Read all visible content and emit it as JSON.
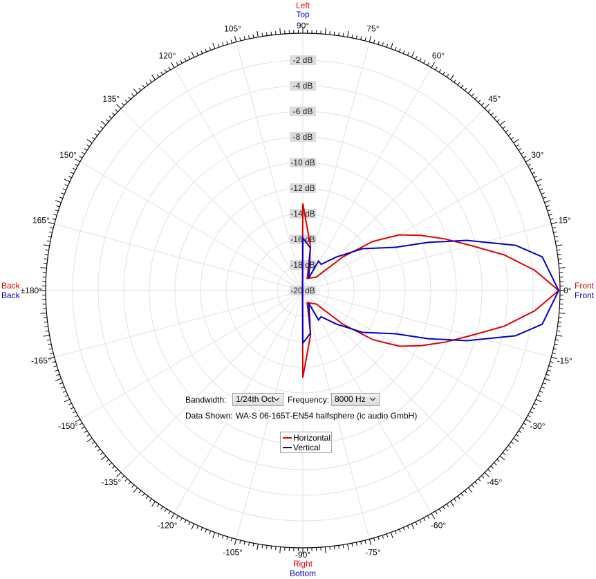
{
  "chart_data": {
    "type": "polar",
    "radial_axis": {
      "unit": "dB",
      "min": -20,
      "max": 0,
      "ring_labels": [
        "-2 dB",
        "-4 dB",
        "-6 dB",
        "-8 dB",
        "-10 dB",
        "-12 dB",
        "-14 dB",
        "-16 dB",
        "-18 dB",
        "-20 dB"
      ]
    },
    "angle_labels": [
      {
        "deg": 90,
        "text": "90°"
      },
      {
        "deg": 75,
        "text": "75°"
      },
      {
        "deg": 60,
        "text": "60°"
      },
      {
        "deg": 45,
        "text": "45°"
      },
      {
        "deg": 30,
        "text": "30°"
      },
      {
        "deg": 15,
        "text": "15°"
      },
      {
        "deg": 0,
        "text": "0°"
      },
      {
        "deg": -15,
        "text": "-15°"
      },
      {
        "deg": -30,
        "text": "-30°"
      },
      {
        "deg": -45,
        "text": "-45°"
      },
      {
        "deg": -60,
        "text": "-60°"
      },
      {
        "deg": -75,
        "text": "-75°"
      },
      {
        "deg": -90,
        "text": "-90°"
      },
      {
        "deg": -105,
        "text": "-105°"
      },
      {
        "deg": -120,
        "text": "-120°"
      },
      {
        "deg": -135,
        "text": "-135°"
      },
      {
        "deg": -150,
        "text": "-150°"
      },
      {
        "deg": -165,
        "text": "-165°"
      },
      {
        "deg": 180,
        "text": "±180°"
      },
      {
        "deg": 165,
        "text": "165°"
      },
      {
        "deg": 150,
        "text": "150°"
      },
      {
        "deg": 135,
        "text": "135°"
      },
      {
        "deg": 120,
        "text": "120°"
      },
      {
        "deg": 105,
        "text": "105°"
      }
    ],
    "direction_labels": {
      "top": [
        {
          "text": "Left",
          "color": "#e00000"
        },
        {
          "text": "Top",
          "color": "#0000d0"
        }
      ],
      "bottom": [
        {
          "text": "Right",
          "color": "#e00000"
        },
        {
          "text": "Bottom",
          "color": "#0000d0"
        }
      ],
      "right": [
        {
          "text": "Front",
          "color": "#e00000"
        },
        {
          "text": "Front",
          "color": "#0000d0"
        }
      ],
      "left": [
        {
          "text": "Back",
          "color": "#e00000"
        },
        {
          "text": "Back",
          "color": "#0000d0"
        }
      ]
    },
    "series": [
      {
        "name": "Horizontal",
        "color": "#e00000",
        "points": [
          {
            "deg": 0,
            "db": 0
          },
          {
            "deg": 5,
            "db": -1.8
          },
          {
            "deg": 10,
            "db": -4.0
          },
          {
            "deg": 15,
            "db": -6.4
          },
          {
            "deg": 20,
            "db": -8.2
          },
          {
            "deg": 25,
            "db": -9.8
          },
          {
            "deg": 30,
            "db": -11.3
          },
          {
            "deg": 35,
            "db": -13.3
          },
          {
            "deg": 40,
            "db": -15.9
          },
          {
            "deg": 45,
            "db": -18.5
          },
          {
            "deg": 70,
            "db": -19.0
          },
          {
            "deg": 80,
            "db": -16.5
          },
          {
            "deg": 90,
            "db": -13.2
          },
          {
            "deg": 100,
            "db": -19.8
          },
          {
            "deg": 180,
            "db": -20
          },
          {
            "deg": -100,
            "db": -19.8
          },
          {
            "deg": -90,
            "db": -13.2
          },
          {
            "deg": -80,
            "db": -16.5
          },
          {
            "deg": -70,
            "db": -19.0
          },
          {
            "deg": -45,
            "db": -18.5
          },
          {
            "deg": -40,
            "db": -15.9
          },
          {
            "deg": -35,
            "db": -13.3
          },
          {
            "deg": -30,
            "db": -11.3
          },
          {
            "deg": -25,
            "db": -9.8
          },
          {
            "deg": -20,
            "db": -8.2
          },
          {
            "deg": -15,
            "db": -6.4
          },
          {
            "deg": -10,
            "db": -4.0
          },
          {
            "deg": -5,
            "db": -1.8
          }
        ]
      },
      {
        "name": "Vertical",
        "color": "#0000d0",
        "points": [
          {
            "deg": 0,
            "db": 0
          },
          {
            "deg": 8,
            "db": -1.1
          },
          {
            "deg": 12,
            "db": -3.0
          },
          {
            "deg": 17,
            "db": -6.6
          },
          {
            "deg": 21,
            "db": -9.5
          },
          {
            "deg": 25,
            "db": -12.0
          },
          {
            "deg": 35,
            "db": -14.3
          },
          {
            "deg": 45,
            "db": -16.3
          },
          {
            "deg": 55,
            "db": -17.5
          },
          {
            "deg": 62,
            "db": -17.4
          },
          {
            "deg": 65,
            "db": -18.9
          },
          {
            "deg": 80,
            "db": -16.6
          },
          {
            "deg": 90,
            "db": -15.9
          },
          {
            "deg": 100,
            "db": -19.9
          },
          {
            "deg": 180,
            "db": -20
          },
          {
            "deg": -100,
            "db": -19.9
          },
          {
            "deg": -90,
            "db": -15.9
          },
          {
            "deg": -80,
            "db": -16.6
          },
          {
            "deg": -65,
            "db": -18.9
          },
          {
            "deg": -62,
            "db": -17.4
          },
          {
            "deg": -55,
            "db": -17.5
          },
          {
            "deg": -45,
            "db": -16.3
          },
          {
            "deg": -35,
            "db": -14.3
          },
          {
            "deg": -25,
            "db": -12.0
          },
          {
            "deg": -21,
            "db": -9.5
          },
          {
            "deg": -17,
            "db": -6.6
          },
          {
            "deg": -12,
            "db": -3.0
          },
          {
            "deg": -8,
            "db": -1.1
          }
        ]
      }
    ],
    "grid": true,
    "legend_position": "bottom-center"
  },
  "controls": {
    "bandwidth_label": "Bandwidth:",
    "bandwidth_value": "1/24th Oct",
    "frequency_label": "Frequency:",
    "frequency_value": "8000 Hz",
    "data_shown_label": "Data Shown:",
    "data_shown_value": "WA-S 06-165T-EN54 halfsphere (ic audio GmbH)"
  },
  "legend": [
    {
      "label": "Horizontal",
      "color": "#e00000"
    },
    {
      "label": "Vertical",
      "color": "#0000d0"
    }
  ]
}
